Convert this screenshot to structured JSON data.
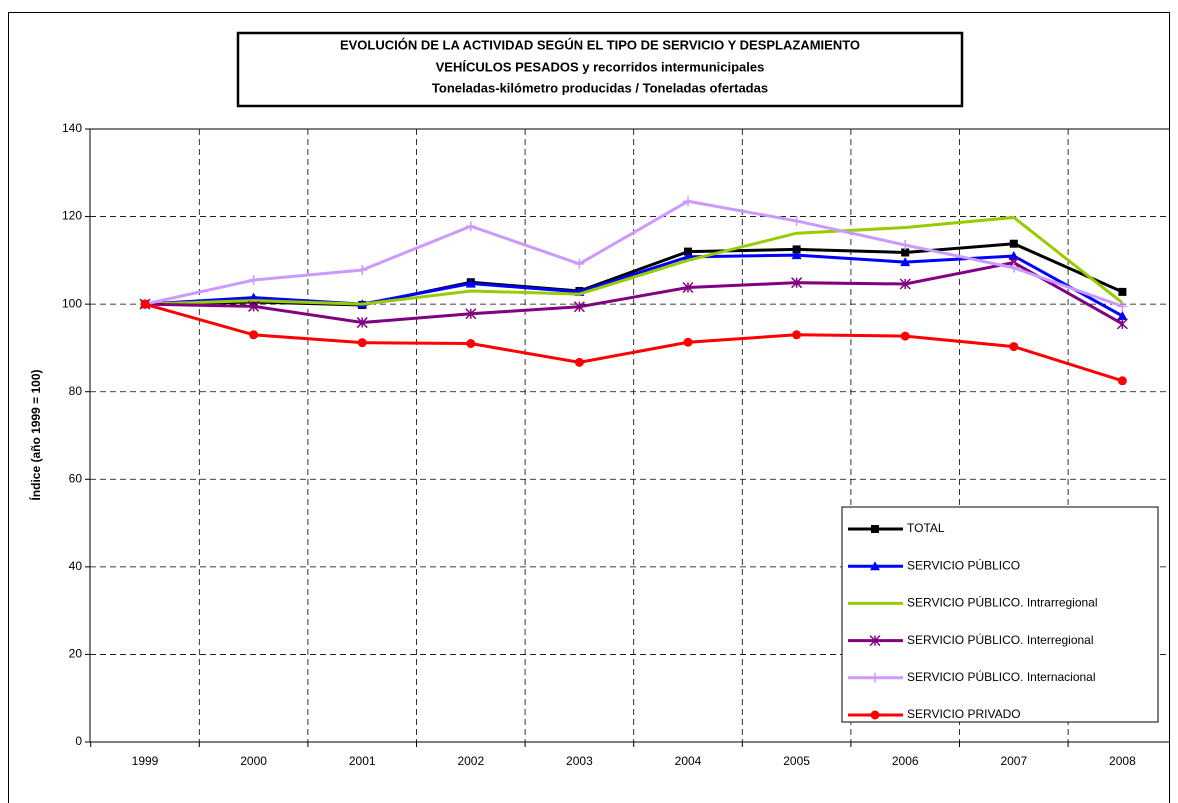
{
  "chart_data": {
    "type": "line",
    "title": [
      "EVOLUCIÓN DE LA ACTIVIDAD SEGÚN EL TIPO DE SERVICIO Y DESPLAZAMIENTO",
      "VEHÍCULOS PESADOS y recorridos intermunicipales",
      "Toneladas-kilómetro producidas / Toneladas ofertadas"
    ],
    "y_label": "Índice (año 1999 = 100)",
    "categories": [
      "1999",
      "2000",
      "2001",
      "2002",
      "2003",
      "2004",
      "2005",
      "2006",
      "2007",
      "2008"
    ],
    "ylim": [
      0,
      140
    ],
    "yticks": [
      0,
      20,
      40,
      60,
      80,
      100,
      120,
      140
    ],
    "grid": true,
    "series": [
      {
        "name": "TOTAL",
        "color": "#000000",
        "marker": "square",
        "values": [
          100,
          100.5,
          99.8,
          105,
          103,
          112,
          112.5,
          111.8,
          113.8,
          102.8
        ]
      },
      {
        "name": "SERVICIO PÚBLICO",
        "color": "#0000ff",
        "marker": "triangle",
        "values": [
          100,
          101.5,
          100,
          104.7,
          102.8,
          110.8,
          111.2,
          109.6,
          111,
          97.3
        ]
      },
      {
        "name": "SERVICIO PÚBLICO. Intrarregional",
        "color": "#99cc00",
        "marker": "none",
        "values": [
          100,
          100.8,
          100,
          103,
          102.3,
          110,
          116.2,
          117.5,
          119.8,
          100.3
        ]
      },
      {
        "name": "SERVICIO PÚBLICO. Interregional",
        "color": "#800080",
        "marker": "star",
        "values": [
          100,
          99.5,
          95.8,
          97.8,
          99.4,
          103.8,
          104.9,
          104.6,
          109.5,
          95.5
        ]
      },
      {
        "name": "SERVICIO PÚBLICO. Internacional",
        "color": "#cc99ff",
        "marker": "plus",
        "values": [
          100,
          105.5,
          107.8,
          117.8,
          109.2,
          123.5,
          119,
          113.5,
          108.3,
          99.5
        ]
      },
      {
        "name": "SERVICIO PRIVADO",
        "color": "#ff0000",
        "marker": "circle",
        "values": [
          100,
          93,
          91.2,
          91,
          86.7,
          91.3,
          93,
          92.7,
          90.3,
          82.5
        ]
      }
    ]
  }
}
